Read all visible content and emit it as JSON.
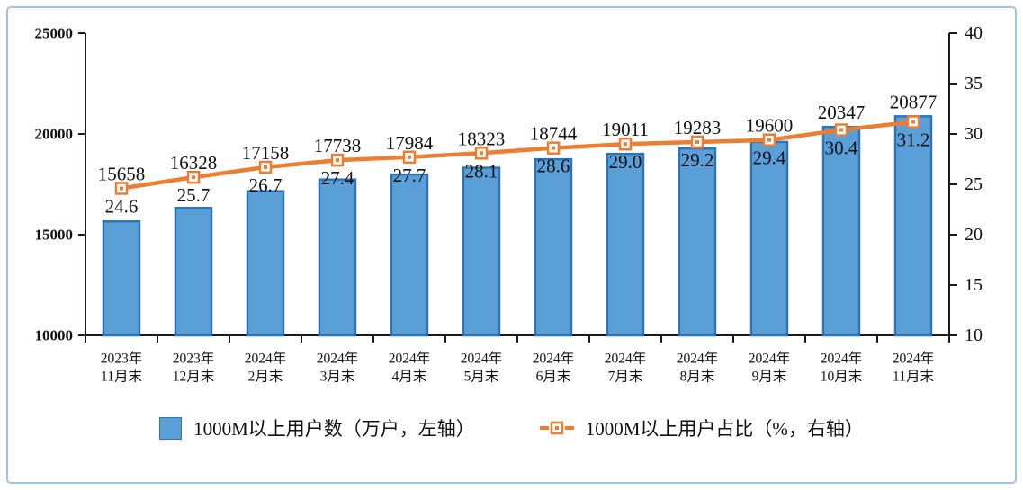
{
  "frame": {
    "border_color": "#9DC3E6",
    "background": "#FFFFFF"
  },
  "legend": {
    "bar_label": "1000M以上用户数（万户，左轴）",
    "line_label": "1000M以上用户占比（%，右轴）"
  },
  "chart_data": {
    "type": "bar",
    "combo": "bar+line dual axis",
    "title": "",
    "xlabel": "",
    "ylabel_left": "1000M以上用户数（万户）",
    "ylabel_right": "1000M以上用户占比（%）",
    "grid": false,
    "legend_position": "bottom",
    "categories": [
      "2023年11月末",
      "2023年12月末",
      "2024年2月末",
      "2024年3月末",
      "2024年4月末",
      "2024年5月末",
      "2024年6月末",
      "2024年7月末",
      "2024年8月末",
      "2024年9月末",
      "2024年10月末",
      "2024年11月末"
    ],
    "categories_two_line": [
      [
        "2023年",
        "11月末"
      ],
      [
        "2023年",
        "12月末"
      ],
      [
        "2024年",
        "2月末"
      ],
      [
        "2024年",
        "3月末"
      ],
      [
        "2024年",
        "4月末"
      ],
      [
        "2024年",
        "5月末"
      ],
      [
        "2024年",
        "6月末"
      ],
      [
        "2024年",
        "7月末"
      ],
      [
        "2024年",
        "8月末"
      ],
      [
        "2024年",
        "9月末"
      ],
      [
        "2024年",
        "10月末"
      ],
      [
        "2024年",
        "11月末"
      ]
    ],
    "series": [
      {
        "name": "1000M以上用户数（万户，左轴）",
        "kind": "bar",
        "axis": "left",
        "values": [
          15658,
          16328,
          17158,
          17738,
          17984,
          18323,
          18744,
          19011,
          19283,
          19600,
          20347,
          20877
        ],
        "labels": [
          "15658",
          "16328",
          "17158",
          "17738",
          "17984",
          "18323",
          "18744",
          "19011",
          "19283",
          "19600",
          "20347",
          "20877"
        ]
      },
      {
        "name": "1000M以上用户占比（%，右轴）",
        "kind": "line",
        "axis": "right",
        "values": [
          24.6,
          25.7,
          26.7,
          27.4,
          27.7,
          28.1,
          28.6,
          29.0,
          29.2,
          29.4,
          30.4,
          31.2
        ],
        "labels": [
          "24.6",
          "25.7",
          "26.7",
          "27.4",
          "27.7",
          "28.1",
          "28.6",
          "29.0",
          "29.2",
          "29.4",
          "30.4",
          "31.2"
        ]
      }
    ],
    "left_axis": {
      "min": 10000,
      "max": 25000,
      "step": 5000,
      "tick_labels": [
        "25000",
        "20000",
        "15000",
        "10000"
      ]
    },
    "right_axis": {
      "min": 10,
      "max": 40,
      "step": 5,
      "tick_labels": [
        "40",
        "35",
        "30",
        "25",
        "20",
        "15",
        "10"
      ]
    },
    "colors": {
      "bar_fill": "#5B9FD8",
      "bar_border": "#2E75B6",
      "line": "#ED7D31",
      "marker_fill": "#FFFFFF",
      "axis": "#1a1a1a",
      "text": "#111111"
    }
  }
}
